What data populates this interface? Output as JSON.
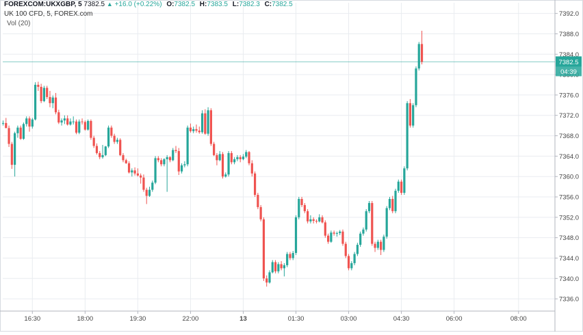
{
  "header": {
    "symbol": "FOREXCOM:UKXGBP, 5",
    "last": "7382.5",
    "change_arrow": "up-triangle-icon",
    "change": "+16.0 (+0.22%)",
    "open_label": "O:",
    "open_value": "7382.5",
    "high_label": "H:",
    "high_value": "7383.5",
    "low_label": "L:",
    "low_value": "7382.3",
    "close_label": "C:",
    "close_value": "7382.5",
    "instrument": "UK 100 CFD, 5, FOREX.com",
    "volume": "Vol (20)"
  },
  "price_badge": {
    "price": "7382.5",
    "countdown": "04:39"
  },
  "colors": {
    "up": "#26a69a",
    "down": "#ef5350",
    "grid": "#e9ecf0",
    "price_line": "#26a69a",
    "axis_text": "#444444"
  },
  "chart_data": {
    "type": "candlestick",
    "yticks": [
      7336.0,
      7340.0,
      7344.0,
      7348.0,
      7352.0,
      7356.0,
      7360.0,
      7364.0,
      7368.0,
      7372.0,
      7376.0,
      7380.0,
      7384.0,
      7388.0,
      7392.0
    ],
    "ylim": [
      7333.6,
      7394.1
    ],
    "xticks": [
      {
        "label": "16:30",
        "index": 10
      },
      {
        "label": "18:00",
        "index": 28
      },
      {
        "label": "19:30",
        "index": 46
      },
      {
        "label": "22:00",
        "index": 64
      },
      {
        "label": "13",
        "index": 82
      },
      {
        "label": "01:30",
        "index": 100
      },
      {
        "label": "03:00",
        "index": 118
      },
      {
        "label": "04:30",
        "index": 136
      },
      {
        "label": "06:00",
        "index": 154
      },
      {
        "label": "08:00",
        "index": 176
      }
    ],
    "candles": [
      [
        7370.5,
        7371.0,
        7370.0,
        7370.5
      ],
      [
        7370.5,
        7371.5,
        7369.5,
        7369.5
      ],
      [
        7369.5,
        7370.0,
        7365.8,
        7366.4
      ],
      [
        7366.4,
        7366.8,
        7361.5,
        7362.3
      ],
      [
        7362.3,
        7368.8,
        7360.0,
        7368.5
      ],
      [
        7368.5,
        7370.0,
        7367.6,
        7369.6
      ],
      [
        7369.6,
        7370.0,
        7367.2,
        7367.4
      ],
      [
        7367.4,
        7370.6,
        7367.2,
        7370.3
      ],
      [
        7370.3,
        7371.8,
        7369.8,
        7371.4
      ],
      [
        7371.4,
        7371.8,
        7368.8,
        7369.8
      ],
      [
        7369.8,
        7371.5,
        7369.4,
        7371.2
      ],
      [
        7371.2,
        7378.5,
        7371.0,
        7378.0
      ],
      [
        7378.0,
        7378.6,
        7376.8,
        7377.6
      ],
      [
        7377.6,
        7378.2,
        7374.4,
        7374.8
      ],
      [
        7374.8,
        7377.8,
        7374.6,
        7377.4
      ],
      [
        7377.4,
        7377.8,
        7375.2,
        7375.6
      ],
      [
        7375.6,
        7376.8,
        7373.6,
        7374.4
      ],
      [
        7374.4,
        7375.9,
        7373.4,
        7375.5
      ],
      [
        7375.5,
        7376.4,
        7372.2,
        7372.6
      ],
      [
        7372.6,
        7373.1,
        7370.3,
        7370.6
      ],
      [
        7370.6,
        7371.4,
        7370.0,
        7371.0
      ],
      [
        7371.0,
        7372.0,
        7370.3,
        7371.4
      ],
      [
        7371.4,
        7372.0,
        7370.0,
        7370.2
      ],
      [
        7370.2,
        7371.4,
        7370.0,
        7370.8
      ],
      [
        7370.8,
        7371.8,
        7370.2,
        7370.8
      ],
      [
        7370.8,
        7371.2,
        7368.3,
        7368.6
      ],
      [
        7368.6,
        7371.2,
        7368.3,
        7370.8
      ],
      [
        7370.8,
        7371.4,
        7370.2,
        7370.7
      ],
      [
        7370.7,
        7371.0,
        7369.0,
        7369.2
      ],
      [
        7369.2,
        7371.2,
        7369.0,
        7370.9
      ],
      [
        7370.9,
        7371.2,
        7367.2,
        7367.6
      ],
      [
        7367.6,
        7368.0,
        7365.6,
        7366.0
      ],
      [
        7366.0,
        7366.5,
        7364.3,
        7364.6
      ],
      [
        7364.6,
        7365.0,
        7363.4,
        7363.8
      ],
      [
        7363.8,
        7366.2,
        7363.5,
        7364.2
      ],
      [
        7364.2,
        7366.0,
        7364.0,
        7365.9
      ],
      [
        7365.9,
        7370.0,
        7365.6,
        7369.6
      ],
      [
        7369.6,
        7370.0,
        7367.6,
        7368.0
      ],
      [
        7368.0,
        7368.4,
        7366.4,
        7366.8
      ],
      [
        7366.8,
        7367.6,
        7366.4,
        7367.2
      ],
      [
        7367.2,
        7367.5,
        7364.0,
        7364.2
      ],
      [
        7364.2,
        7364.6,
        7362.8,
        7363.2
      ],
      [
        7363.2,
        7363.5,
        7362.5,
        7362.6
      ],
      [
        7362.6,
        7363.0,
        7360.6,
        7360.8
      ],
      [
        7360.8,
        7361.6,
        7360.0,
        7361.2
      ],
      [
        7361.2,
        7361.8,
        7360.2,
        7360.6
      ],
      [
        7360.6,
        7361.6,
        7360.0,
        7360.2
      ],
      [
        7360.2,
        7360.6,
        7358.6,
        7359.8
      ],
      [
        7359.8,
        7360.4,
        7357.0,
        7357.4
      ],
      [
        7357.4,
        7357.8,
        7354.6,
        7356.2
      ],
      [
        7356.2,
        7358.0,
        7356.0,
        7357.4
      ],
      [
        7357.4,
        7359.2,
        7357.0,
        7358.8
      ],
      [
        7358.8,
        7364.0,
        7358.5,
        7363.6
      ],
      [
        7363.6,
        7364.0,
        7362.8,
        7363.2
      ],
      [
        7363.2,
        7363.6,
        7362.0,
        7362.4
      ],
      [
        7362.4,
        7363.6,
        7362.0,
        7363.4
      ],
      [
        7363.4,
        7364.2,
        7357.0,
        7363.8
      ],
      [
        7363.8,
        7364.0,
        7362.8,
        7363.2
      ],
      [
        7363.2,
        7365.6,
        7363.0,
        7365.2
      ],
      [
        7365.2,
        7366.0,
        7364.6,
        7365.0
      ],
      [
        7365.0,
        7365.6,
        7360.3,
        7361.0
      ],
      [
        7361.0,
        7362.6,
        7360.6,
        7362.2
      ],
      [
        7362.2,
        7363.0,
        7361.8,
        7362.4
      ],
      [
        7362.4,
        7370.0,
        7362.0,
        7369.6
      ],
      [
        7369.6,
        7370.4,
        7368.6,
        7368.9
      ],
      [
        7368.9,
        7369.8,
        7368.5,
        7369.3
      ],
      [
        7369.3,
        7370.2,
        7368.6,
        7369.0
      ],
      [
        7369.0,
        7369.8,
        7368.4,
        7368.7
      ],
      [
        7368.7,
        7373.0,
        7368.4,
        7372.4
      ],
      [
        7372.4,
        7373.2,
        7368.2,
        7368.4
      ],
      [
        7368.4,
        7373.6,
        7368.0,
        7373.0
      ],
      [
        7373.0,
        7373.4,
        7366.0,
        7366.4
      ],
      [
        7366.4,
        7366.8,
        7364.0,
        7364.2
      ],
      [
        7364.2,
        7364.6,
        7362.2,
        7363.2
      ],
      [
        7363.2,
        7365.0,
        7363.0,
        7364.4
      ],
      [
        7364.4,
        7364.8,
        7359.6,
        7360.0
      ],
      [
        7360.0,
        7360.8,
        7359.8,
        7360.4
      ],
      [
        7360.4,
        7365.0,
        7360.0,
        7364.6
      ],
      [
        7364.6,
        7365.0,
        7362.4,
        7362.8
      ],
      [
        7362.8,
        7363.8,
        7362.4,
        7363.4
      ],
      [
        7363.4,
        7364.2,
        7363.0,
        7363.8
      ],
      [
        7363.8,
        7364.2,
        7362.8,
        7363.4
      ],
      [
        7363.4,
        7364.4,
        7363.2,
        7363.9
      ],
      [
        7363.9,
        7365.2,
        7363.6,
        7364.8
      ],
      [
        7364.8,
        7365.0,
        7362.2,
        7362.6
      ],
      [
        7362.6,
        7363.2,
        7360.0,
        7360.6
      ],
      [
        7360.6,
        7361.0,
        7356.0,
        7356.4
      ],
      [
        7356.4,
        7356.8,
        7353.6,
        7354.0
      ],
      [
        7354.0,
        7354.4,
        7351.2,
        7351.6
      ],
      [
        7351.6,
        7352.0,
        7339.5,
        7340.0
      ],
      [
        7340.0,
        7340.6,
        7338.4,
        7339.2
      ],
      [
        7339.2,
        7341.6,
        7339.0,
        7341.2
      ],
      [
        7341.2,
        7343.6,
        7341.0,
        7343.2
      ],
      [
        7343.2,
        7343.6,
        7341.0,
        7341.4
      ],
      [
        7341.4,
        7343.2,
        7341.0,
        7342.8
      ],
      [
        7342.8,
        7343.4,
        7341.6,
        7342.0
      ],
      [
        7342.0,
        7343.0,
        7340.4,
        7342.6
      ],
      [
        7342.6,
        7345.2,
        7342.2,
        7344.8
      ],
      [
        7344.8,
        7345.2,
        7343.6,
        7344.0
      ],
      [
        7344.0,
        7345.4,
        7343.6,
        7345.0
      ],
      [
        7345.0,
        7352.4,
        7344.6,
        7352.0
      ],
      [
        7352.0,
        7356.0,
        7351.6,
        7355.6
      ],
      [
        7355.6,
        7356.0,
        7354.0,
        7354.4
      ],
      [
        7354.4,
        7354.8,
        7352.8,
        7353.2
      ],
      [
        7353.2,
        7353.6,
        7350.8,
        7351.2
      ],
      [
        7351.2,
        7352.4,
        7350.8,
        7351.6
      ],
      [
        7351.6,
        7352.0,
        7350.8,
        7351.3
      ],
      [
        7351.3,
        7351.6,
        7350.8,
        7351.2
      ],
      [
        7351.2,
        7352.6,
        7351.0,
        7352.0
      ],
      [
        7352.0,
        7352.4,
        7350.8,
        7351.0
      ],
      [
        7351.0,
        7351.4,
        7348.0,
        7348.4
      ],
      [
        7348.4,
        7348.8,
        7346.8,
        7347.2
      ],
      [
        7347.2,
        7349.4,
        7347.0,
        7349.0
      ],
      [
        7349.0,
        7349.4,
        7348.4,
        7348.8
      ],
      [
        7348.8,
        7349.2,
        7348.2,
        7348.9
      ],
      [
        7348.9,
        7349.5,
        7348.5,
        7349.2
      ],
      [
        7349.2,
        7349.6,
        7346.4,
        7346.8
      ],
      [
        7346.8,
        7347.2,
        7344.0,
        7344.4
      ],
      [
        7344.4,
        7344.8,
        7341.6,
        7342.0
      ],
      [
        7342.0,
        7343.4,
        7341.6,
        7343.0
      ],
      [
        7343.0,
        7345.2,
        7342.6,
        7344.8
      ],
      [
        7344.8,
        7347.0,
        7344.4,
        7346.6
      ],
      [
        7346.6,
        7349.2,
        7346.2,
        7348.8
      ],
      [
        7348.8,
        7350.0,
        7348.4,
        7349.6
      ],
      [
        7349.6,
        7353.6,
        7349.2,
        7353.2
      ],
      [
        7353.2,
        7355.2,
        7352.8,
        7354.8
      ],
      [
        7354.8,
        7355.2,
        7346.4,
        7346.8
      ],
      [
        7346.8,
        7347.2,
        7345.2,
        7346.0
      ],
      [
        7346.0,
        7347.6,
        7345.6,
        7347.2
      ],
      [
        7347.2,
        7347.6,
        7344.6,
        7345.6
      ],
      [
        7345.6,
        7348.6,
        7345.2,
        7348.2
      ],
      [
        7348.2,
        7354.2,
        7347.8,
        7353.8
      ],
      [
        7353.8,
        7356.0,
        7353.4,
        7355.6
      ],
      [
        7355.6,
        7356.2,
        7352.8,
        7353.2
      ],
      [
        7353.2,
        7357.6,
        7352.8,
        7357.2
      ],
      [
        7357.2,
        7359.4,
        7356.8,
        7359.0
      ],
      [
        7359.0,
        7359.4,
        7356.4,
        7356.8
      ],
      [
        7356.8,
        7362.0,
        7356.4,
        7361.6
      ],
      [
        7361.6,
        7374.8,
        7361.2,
        7374.4
      ],
      [
        7374.4,
        7375.2,
        7369.6,
        7370.0
      ],
      [
        7370.0,
        7374.4,
        7369.6,
        7374.0
      ],
      [
        7374.0,
        7381.6,
        7373.6,
        7381.2
      ],
      [
        7381.2,
        7386.4,
        7380.8,
        7386.0
      ],
      [
        7386.0,
        7388.6,
        7382.0,
        7382.5
      ]
    ],
    "current_price": 7382.5
  }
}
